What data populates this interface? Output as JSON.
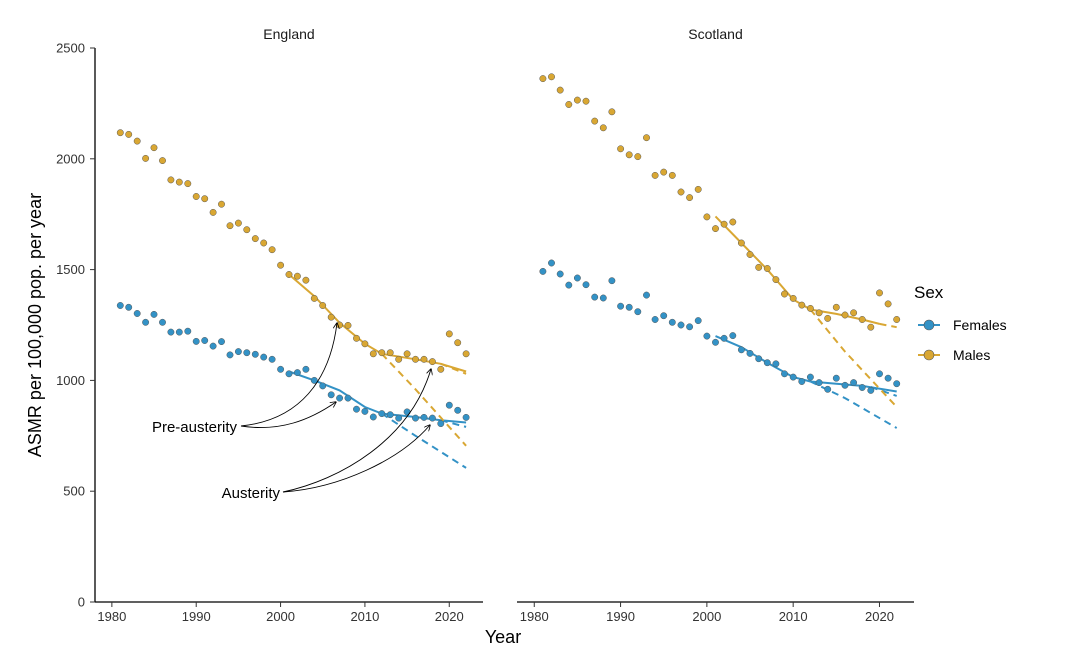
{
  "chart_data": {
    "type": "scatter",
    "xlabel": "Year",
    "ylabel": "ASMR per 100,000 pop. per year",
    "xlim": [
      1978,
      2024
    ],
    "ylim": [
      0,
      2500
    ],
    "x_ticks": [
      1980,
      1990,
      2000,
      2010,
      2020
    ],
    "y_ticks": [
      0,
      500,
      1000,
      1500,
      2000,
      2500
    ],
    "legend": {
      "title": "Sex",
      "position": "right",
      "entries": [
        {
          "label": "Females",
          "color": "#3392c6"
        },
        {
          "label": "Males",
          "color": "#d9a733"
        }
      ]
    },
    "annotations": [
      "Pre-austerity",
      "Austerity"
    ],
    "panels": [
      {
        "strip": "England",
        "series": [
          {
            "name": "Females",
            "color": "#3392c6",
            "points": [
              [
                1981,
                1338
              ],
              [
                1982,
                1330
              ],
              [
                1983,
                1302
              ],
              [
                1984,
                1262
              ],
              [
                1985,
                1298
              ],
              [
                1986,
                1262
              ],
              [
                1987,
                1218
              ],
              [
                1988,
                1218
              ],
              [
                1989,
                1222
              ],
              [
                1990,
                1176
              ],
              [
                1991,
                1180
              ],
              [
                1992,
                1155
              ],
              [
                1993,
                1175
              ],
              [
                1994,
                1115
              ],
              [
                1995,
                1130
              ],
              [
                1996,
                1125
              ],
              [
                1997,
                1118
              ],
              [
                1998,
                1105
              ],
              [
                1999,
                1095
              ],
              [
                2000,
                1050
              ],
              [
                2001,
                1030
              ],
              [
                2002,
                1035
              ],
              [
                2003,
                1050
              ],
              [
                2004,
                1000
              ],
              [
                2005,
                975
              ],
              [
                2006,
                935
              ],
              [
                2007,
                920
              ],
              [
                2008,
                920
              ],
              [
                2009,
                870
              ],
              [
                2010,
                860
              ],
              [
                2011,
                835
              ],
              [
                2012,
                850
              ],
              [
                2013,
                845
              ],
              [
                2014,
                830
              ],
              [
                2015,
                858
              ],
              [
                2016,
                830
              ],
              [
                2017,
                833
              ],
              [
                2018,
                830
              ],
              [
                2019,
                805
              ],
              [
                2020,
                888
              ],
              [
                2021,
                865
              ],
              [
                2022,
                833
              ]
            ],
            "trend_pre": [
              [
                2001,
                1040
              ],
              [
                2004,
                1000
              ],
              [
                2007,
                955
              ],
              [
                2010,
                880
              ],
              [
                2012,
                850
              ]
            ],
            "trend_post": [
              [
                2012,
                850
              ],
              [
                2016,
                835
              ],
              [
                2019,
                820
              ],
              [
                2022,
                810
              ]
            ],
            "proj_pre": [
              [
                2012,
                850
              ],
              [
                2016,
                750
              ],
              [
                2022,
                605
              ]
            ],
            "proj_post": [
              [
                2019,
                820
              ],
              [
                2022,
                790
              ]
            ]
          },
          {
            "name": "Males",
            "color": "#d9a733",
            "points": [
              [
                1981,
                2118
              ],
              [
                1982,
                2110
              ],
              [
                1983,
                2080
              ],
              [
                1984,
                2002
              ],
              [
                1985,
                2050
              ],
              [
                1986,
                1992
              ],
              [
                1987,
                1905
              ],
              [
                1988,
                1895
              ],
              [
                1989,
                1888
              ],
              [
                1990,
                1830
              ],
              [
                1991,
                1820
              ],
              [
                1992,
                1758
              ],
              [
                1993,
                1795
              ],
              [
                1994,
                1698
              ],
              [
                1995,
                1710
              ],
              [
                1996,
                1680
              ],
              [
                1997,
                1640
              ],
              [
                1998,
                1620
              ],
              [
                1999,
                1590
              ],
              [
                2000,
                1520
              ],
              [
                2001,
                1478
              ],
              [
                2002,
                1470
              ],
              [
                2003,
                1452
              ],
              [
                2004,
                1370
              ],
              [
                2005,
                1338
              ],
              [
                2006,
                1285
              ],
              [
                2007,
                1250
              ],
              [
                2008,
                1248
              ],
              [
                2009,
                1190
              ],
              [
                2010,
                1165
              ],
              [
                2011,
                1120
              ],
              [
                2012,
                1125
              ],
              [
                2013,
                1125
              ],
              [
                2014,
                1095
              ],
              [
                2015,
                1120
              ],
              [
                2016,
                1095
              ],
              [
                2017,
                1095
              ],
              [
                2018,
                1085
              ],
              [
                2019,
                1050
              ],
              [
                2020,
                1210
              ],
              [
                2021,
                1170
              ],
              [
                2022,
                1120
              ]
            ],
            "trend_pre": [
              [
                2001,
                1478
              ],
              [
                2004,
                1380
              ],
              [
                2007,
                1260
              ],
              [
                2010,
                1165
              ],
              [
                2012,
                1120
              ]
            ],
            "trend_post": [
              [
                2012,
                1120
              ],
              [
                2016,
                1095
              ],
              [
                2019,
                1075
              ],
              [
                2022,
                1040
              ]
            ],
            "proj_pre": [
              [
                2012,
                1120
              ],
              [
                2016,
                960
              ],
              [
                2022,
                705
              ]
            ],
            "proj_post": [
              [
                2019,
                1075
              ],
              [
                2022,
                1030
              ]
            ]
          }
        ]
      },
      {
        "strip": "Scotland",
        "series": [
          {
            "name": "Females",
            "color": "#3392c6",
            "points": [
              [
                1981,
                1492
              ],
              [
                1982,
                1530
              ],
              [
                1983,
                1480
              ],
              [
                1984,
                1430
              ],
              [
                1985,
                1462
              ],
              [
                1986,
                1432
              ],
              [
                1987,
                1376
              ],
              [
                1988,
                1372
              ],
              [
                1989,
                1450
              ],
              [
                1990,
                1335
              ],
              [
                1991,
                1330
              ],
              [
                1992,
                1310
              ],
              [
                1993,
                1385
              ],
              [
                1994,
                1275
              ],
              [
                1995,
                1292
              ],
              [
                1996,
                1262
              ],
              [
                1997,
                1250
              ],
              [
                1998,
                1242
              ],
              [
                1999,
                1270
              ],
              [
                2000,
                1200
              ],
              [
                2001,
                1172
              ],
              [
                2002,
                1190
              ],
              [
                2003,
                1202
              ],
              [
                2004,
                1138
              ],
              [
                2005,
                1122
              ],
              [
                2006,
                1098
              ],
              [
                2007,
                1080
              ],
              [
                2008,
                1075
              ],
              [
                2009,
                1030
              ],
              [
                2010,
                1015
              ],
              [
                2011,
                995
              ],
              [
                2012,
                1015
              ],
              [
                2013,
                990
              ],
              [
                2014,
                960
              ],
              [
                2015,
                1010
              ],
              [
                2016,
                978
              ],
              [
                2017,
                990
              ],
              [
                2018,
                968
              ],
              [
                2019,
                955
              ],
              [
                2020,
                1030
              ],
              [
                2021,
                1010
              ],
              [
                2022,
                985
              ]
            ],
            "trend_pre": [
              [
                2001,
                1200
              ],
              [
                2004,
                1150
              ],
              [
                2007,
                1080
              ],
              [
                2010,
                1015
              ],
              [
                2012,
                995
              ]
            ],
            "trend_post": [
              [
                2012,
                995
              ],
              [
                2015,
                985
              ],
              [
                2018,
                975
              ],
              [
                2022,
                950
              ]
            ],
            "proj_pre": [
              [
                2012,
                995
              ],
              [
                2016,
                920
              ],
              [
                2022,
                785
              ]
            ],
            "proj_post": [
              [
                2019,
                970
              ],
              [
                2022,
                930
              ]
            ]
          },
          {
            "name": "Males",
            "color": "#d9a733",
            "points": [
              [
                1981,
                2362
              ],
              [
                1982,
                2370
              ],
              [
                1983,
                2310
              ],
              [
                1984,
                2245
              ],
              [
                1985,
                2265
              ],
              [
                1986,
                2260
              ],
              [
                1987,
                2170
              ],
              [
                1988,
                2140
              ],
              [
                1989,
                2212
              ],
              [
                1990,
                2045
              ],
              [
                1991,
                2018
              ],
              [
                1992,
                2010
              ],
              [
                1993,
                2095
              ],
              [
                1994,
                1925
              ],
              [
                1995,
                1940
              ],
              [
                1996,
                1925
              ],
              [
                1997,
                1850
              ],
              [
                1998,
                1825
              ],
              [
                1999,
                1862
              ],
              [
                2000,
                1738
              ],
              [
                2001,
                1685
              ],
              [
                2002,
                1705
              ],
              [
                2003,
                1715
              ],
              [
                2004,
                1620
              ],
              [
                2005,
                1568
              ],
              [
                2006,
                1510
              ],
              [
                2007,
                1505
              ],
              [
                2008,
                1455
              ],
              [
                2009,
                1390
              ],
              [
                2010,
                1370
              ],
              [
                2011,
                1340
              ],
              [
                2012,
                1325
              ],
              [
                2013,
                1305
              ],
              [
                2014,
                1280
              ],
              [
                2015,
                1330
              ],
              [
                2016,
                1295
              ],
              [
                2017,
                1305
              ],
              [
                2018,
                1275
              ],
              [
                2019,
                1240
              ],
              [
                2020,
                1395
              ],
              [
                2021,
                1345
              ],
              [
                2022,
                1275
              ]
            ],
            "trend_pre": [
              [
                2001,
                1740
              ],
              [
                2004,
                1620
              ],
              [
                2007,
                1500
              ],
              [
                2010,
                1365
              ],
              [
                2012,
                1320
              ]
            ],
            "trend_post": [
              [
                2012,
                1320
              ],
              [
                2015,
                1300
              ],
              [
                2018,
                1275
              ],
              [
                2020,
                1255
              ]
            ],
            "proj_pre": [
              [
                2012,
                1320
              ],
              [
                2016,
                1130
              ],
              [
                2022,
                880
              ]
            ],
            "proj_post": [
              [
                2020,
                1255
              ],
              [
                2022,
                1240
              ]
            ]
          }
        ]
      }
    ]
  }
}
